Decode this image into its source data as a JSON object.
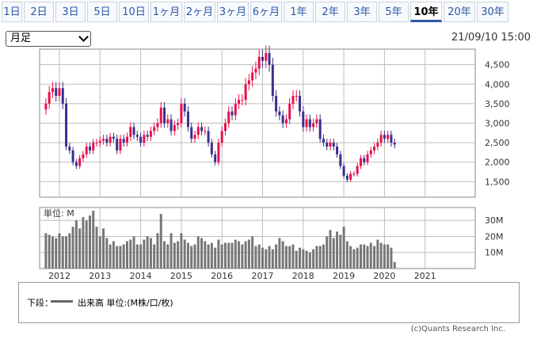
{
  "tabs": [
    {
      "label": "1日",
      "active": false
    },
    {
      "label": "2日",
      "active": false
    },
    {
      "label": "3日",
      "active": false
    },
    {
      "label": "5日",
      "active": false
    },
    {
      "label": "10日",
      "active": false
    },
    {
      "label": "1ヶ月",
      "active": false
    },
    {
      "label": "2ヶ月",
      "active": false
    },
    {
      "label": "3ヶ月",
      "active": false
    },
    {
      "label": "6ヶ月",
      "active": false
    },
    {
      "label": "1年",
      "active": false
    },
    {
      "label": "2年",
      "active": false
    },
    {
      "label": "3年",
      "active": false
    },
    {
      "label": "5年",
      "active": false
    },
    {
      "label": "10年",
      "active": true
    },
    {
      "label": "20年",
      "active": false
    },
    {
      "label": "30年",
      "active": false
    }
  ],
  "period_select": {
    "value": "月足"
  },
  "timestamp": "21/09/10 15:00",
  "legend": {
    "prefix": "下段：",
    "text": "出来高 単位:(M株/口/枚)"
  },
  "copyright": "(c)Quants Research Inc.",
  "colors": {
    "up": "#e8104a",
    "down": "#3b2f8f",
    "volume": "#777777",
    "grid": "#bdbdbd"
  },
  "chart_data": [
    {
      "type": "candlestick",
      "title": "",
      "xlabel": "",
      "ylabel": "",
      "x_ticks": [
        "2012",
        "2013",
        "2014",
        "2015",
        "2016",
        "2017",
        "2018",
        "2019",
        "2020",
        "2021"
      ],
      "y_ticks": [
        "1,500",
        "2,000",
        "2,500",
        "3,000",
        "3,500",
        "4,000",
        "4,500"
      ],
      "y_tick_values": [
        1500,
        2000,
        2500,
        3000,
        3500,
        4000,
        4500
      ],
      "ylim": [
        1100,
        4900
      ],
      "start": "2011-09",
      "closes": [
        3500,
        3800,
        3900,
        3700,
        3900,
        3500,
        2400,
        2300,
        2000,
        1900,
        2100,
        2200,
        2400,
        2300,
        2500,
        2500,
        2550,
        2600,
        2500,
        2650,
        2600,
        2300,
        2600,
        2500,
        2650,
        2900,
        2700,
        2650,
        2500,
        2700,
        2650,
        2800,
        2900,
        3000,
        3400,
        3000,
        3100,
        2800,
        2950,
        3000,
        3500,
        3300,
        2900,
        2600,
        2700,
        2900,
        2800,
        2800,
        2500,
        2200,
        2000,
        2500,
        2800,
        3000,
        3300,
        3200,
        3500,
        3600,
        3600,
        4000,
        4100,
        4300,
        4400,
        4700,
        4600,
        4800,
        4500,
        3700,
        3300,
        3200,
        3000,
        3100,
        3500,
        3700,
        3700,
        3300,
        2900,
        3100,
        2900,
        3000,
        3100,
        2600,
        2500,
        2400,
        2500,
        2400,
        2200,
        1900,
        1650,
        1550,
        1700,
        1700,
        1900,
        2100,
        2000,
        2200,
        2300,
        2400,
        2500,
        2700,
        2600,
        2700,
        2500,
        2450
      ],
      "volume": {
        "ylabel": "単位: M",
        "y_ticks": [
          "10M",
          "20M",
          "30M"
        ],
        "y_tick_values": [
          10,
          20,
          30
        ],
        "ylim": [
          0,
          38
        ],
        "values": [
          22,
          21,
          20,
          19,
          22,
          20,
          20,
          22,
          26,
          30,
          25,
          32,
          30,
          33,
          36,
          26,
          20,
          25,
          19,
          15,
          17,
          14,
          14,
          15,
          17,
          18,
          20,
          15,
          15,
          18,
          20,
          19,
          15,
          22,
          34,
          17,
          15,
          22,
          16,
          17,
          22,
          18,
          16,
          14,
          15,
          20,
          19,
          17,
          15,
          16,
          13,
          18,
          15,
          16,
          16,
          16,
          18,
          17,
          15,
          17,
          18,
          20,
          14,
          15,
          13,
          12,
          14,
          12,
          15,
          19,
          17,
          14,
          14,
          15,
          11,
          13,
          12,
          11,
          10,
          12,
          14,
          14,
          15,
          20,
          24,
          19,
          23,
          21,
          26,
          17,
          14,
          12,
          13,
          15,
          15,
          14,
          16,
          14,
          18,
          16,
          15,
          15,
          13,
          4
        ]
      }
    }
  ]
}
